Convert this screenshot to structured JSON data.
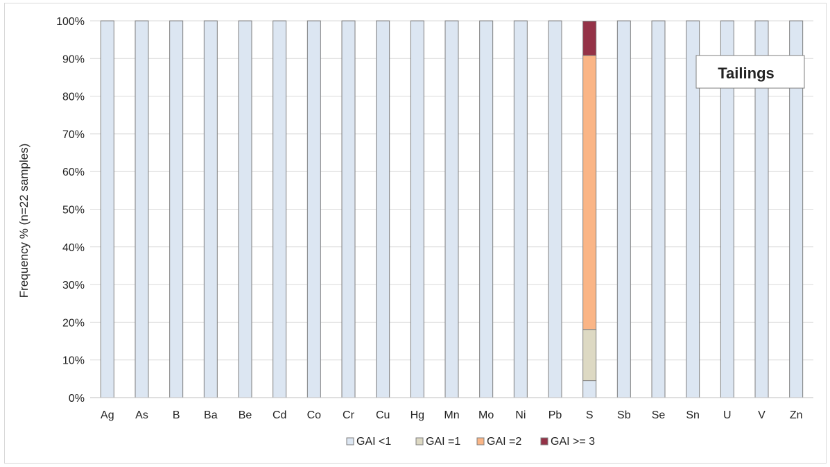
{
  "chart_data": {
    "type": "bar",
    "stacked": true,
    "percent_stacked": true,
    "annotation": "Tailings",
    "ylabel": "Frequency % (n=22 samples)",
    "xlabel": "",
    "ylim": [
      0,
      100
    ],
    "y_ticks": [
      "0%",
      "10%",
      "20%",
      "30%",
      "40%",
      "50%",
      "60%",
      "70%",
      "80%",
      "90%",
      "100%"
    ],
    "grid": true,
    "legend_position": "bottom",
    "categories": [
      "Ag",
      "As",
      "B",
      "Ba",
      "Be",
      "Cd",
      "Co",
      "Cr",
      "Cu",
      "Hg",
      "Mn",
      "Mo",
      "Ni",
      "Pb",
      "S",
      "Sb",
      "Se",
      "Sn",
      "U",
      "V",
      "Zn"
    ],
    "series": [
      {
        "name": "GAI <1",
        "color": "#dce6f2",
        "values": [
          100,
          100,
          100,
          100,
          100,
          100,
          100,
          100,
          100,
          100,
          100,
          100,
          100,
          100,
          4.5,
          100,
          100,
          100,
          100,
          100,
          100
        ]
      },
      {
        "name": "GAI =1",
        "color": "#ddd9c3",
        "values": [
          0,
          0,
          0,
          0,
          0,
          0,
          0,
          0,
          0,
          0,
          0,
          0,
          0,
          0,
          13.6,
          0,
          0,
          0,
          0,
          0,
          0
        ]
      },
      {
        "name": "GAI =2",
        "color": "#fab586",
        "values": [
          0,
          0,
          0,
          0,
          0,
          0,
          0,
          0,
          0,
          0,
          0,
          0,
          0,
          0,
          72.7,
          0,
          0,
          0,
          0,
          0,
          0
        ]
      },
      {
        "name": "GAI >= 3",
        "color": "#943247",
        "values": [
          0,
          0,
          0,
          0,
          0,
          0,
          0,
          0,
          0,
          0,
          0,
          0,
          0,
          0,
          9.1,
          0,
          0,
          0,
          0,
          0,
          0
        ]
      }
    ]
  }
}
